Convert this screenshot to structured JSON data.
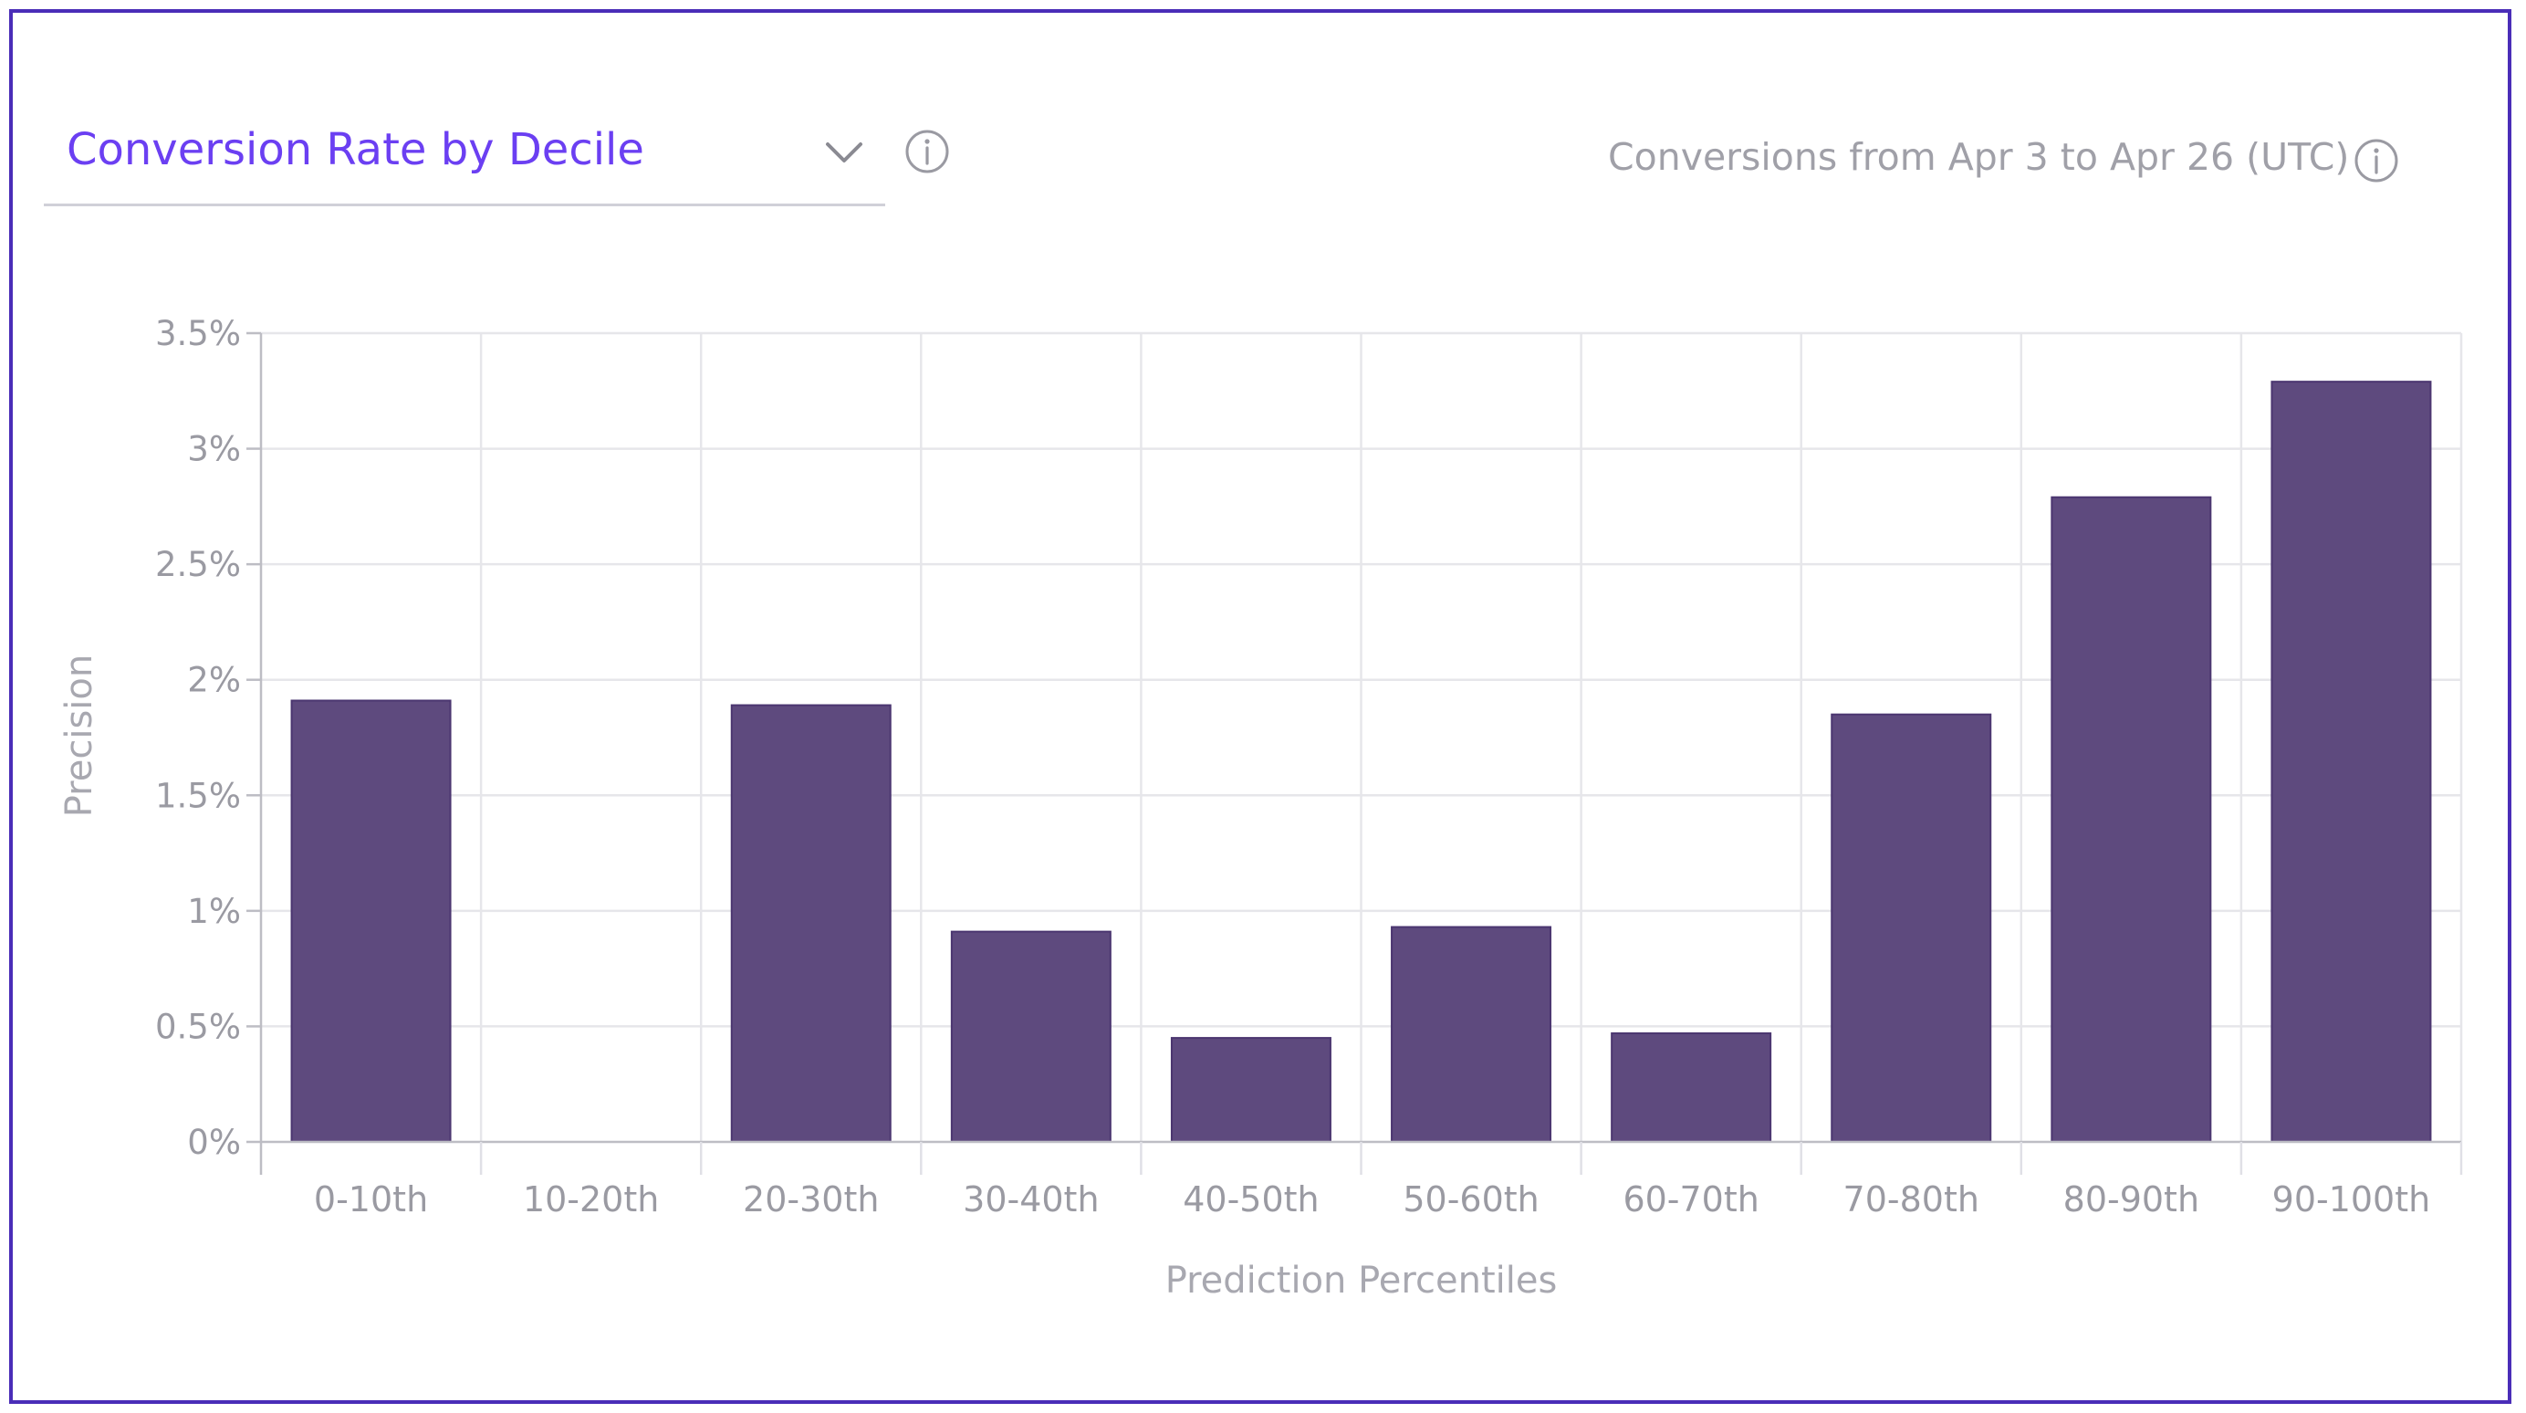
{
  "header": {
    "title": "Conversion Rate by Decile",
    "date_range": "Conversions from Apr 3 to Apr 26 (UTC)"
  },
  "icons": {
    "dropdown": "chevron-down-icon",
    "info": "info-icon"
  },
  "colors": {
    "accent": "#6b3ff2",
    "bar": "#5e4a7e",
    "frame": "#4a2db8"
  },
  "chart_data": {
    "type": "bar",
    "categories": [
      "0-10th",
      "10-20th",
      "20-30th",
      "30-40th",
      "40-50th",
      "50-60th",
      "60-70th",
      "70-80th",
      "80-90th",
      "90-100th"
    ],
    "values": [
      1.91,
      0,
      1.89,
      0.91,
      0.45,
      0.93,
      0.47,
      1.85,
      2.79,
      3.29
    ],
    "ylim": [
      0,
      3.5
    ],
    "yticks": [
      0,
      0.5,
      1,
      1.5,
      2,
      2.5,
      3,
      3.5
    ],
    "ytick_labels": [
      "0%",
      "0.5%",
      "1%",
      "1.5%",
      "2%",
      "2.5%",
      "3%",
      "3.5%"
    ],
    "xlabel": "Prediction Percentiles",
    "ylabel": "Precision",
    "grid": true,
    "legend": "none"
  }
}
